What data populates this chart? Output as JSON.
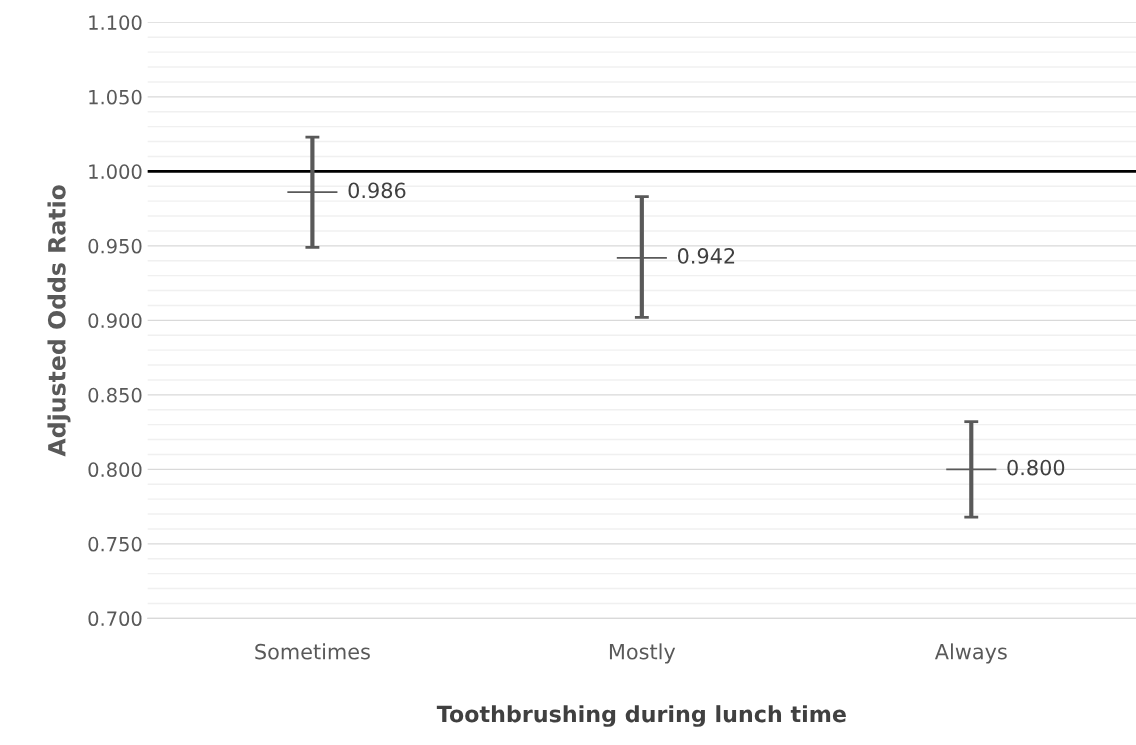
{
  "chart_data": {
    "type": "scatter",
    "xlabel": "Toothbrushing during lunch time",
    "ylabel": "Adjusted Odds Ratio",
    "categories": [
      "Sometimes",
      "Mostly",
      "Always"
    ],
    "values": [
      0.986,
      0.942,
      0.8
    ],
    "errors": [
      [
        0.949,
        1.023
      ],
      [
        0.902,
        0.983
      ],
      [
        0.768,
        0.832
      ]
    ],
    "value_labels": [
      "0.986",
      "0.942",
      "0.800"
    ],
    "color": "#595959",
    "marker": "cross",
    "grid": "y",
    "ylim": [
      0.7,
      1.1
    ],
    "yticks": [
      {
        "value": 0.7,
        "label": "0.700"
      },
      {
        "value": 0.71,
        "label": null
      },
      {
        "value": 0.72,
        "label": null
      },
      {
        "value": 0.73,
        "label": null
      },
      {
        "value": 0.74,
        "label": null
      },
      {
        "value": 0.75,
        "label": "0.750"
      },
      {
        "value": 0.76,
        "label": null
      },
      {
        "value": 0.77,
        "label": null
      },
      {
        "value": 0.78,
        "label": null
      },
      {
        "value": 0.79,
        "label": null
      },
      {
        "value": 0.8,
        "label": "0.800"
      },
      {
        "value": 0.81,
        "label": null
      },
      {
        "value": 0.82,
        "label": null
      },
      {
        "value": 0.83,
        "label": null
      },
      {
        "value": 0.84,
        "label": null
      },
      {
        "value": 0.85,
        "label": "0.850"
      },
      {
        "value": 0.86,
        "label": null
      },
      {
        "value": 0.87,
        "label": null
      },
      {
        "value": 0.88,
        "label": null
      },
      {
        "value": 0.89,
        "label": null
      },
      {
        "value": 0.9,
        "label": "0.900"
      },
      {
        "value": 0.91,
        "label": null
      },
      {
        "value": 0.92,
        "label": null
      },
      {
        "value": 0.93,
        "label": null
      },
      {
        "value": 0.94,
        "label": null
      },
      {
        "value": 0.95,
        "label": "0.950"
      },
      {
        "value": 0.96,
        "label": null
      },
      {
        "value": 0.97,
        "label": null
      },
      {
        "value": 0.98,
        "label": null
      },
      {
        "value": 0.99,
        "label": null
      },
      {
        "value": 1.0,
        "label": "1.000"
      },
      {
        "value": 1.01,
        "label": null
      },
      {
        "value": 1.02,
        "label": null
      },
      {
        "value": 1.03,
        "label": null
      },
      {
        "value": 1.04,
        "label": null
      },
      {
        "value": 1.05,
        "label": "1.050"
      },
      {
        "value": 1.06,
        "label": null
      },
      {
        "value": 1.07,
        "label": null
      },
      {
        "value": 1.08,
        "label": null
      },
      {
        "value": 1.09,
        "label": null
      },
      {
        "value": 1.1,
        "label": "1.100"
      }
    ],
    "ref_lines": [
      {
        "axis": "y",
        "value": 1.0,
        "label": null,
        "color": "#000000",
        "line_style": "solid"
      }
    ]
  }
}
